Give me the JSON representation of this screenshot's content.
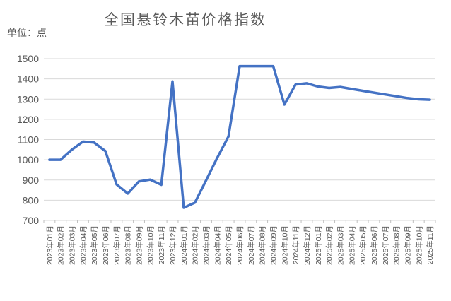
{
  "title": "全国悬铃木苗价格指数",
  "unit_label": "单位：点",
  "colors": {
    "line": "#4472C4",
    "grid": "#D9D9D9",
    "axis": "#D9D9D9",
    "tick": "#BFBFBF",
    "text": "#595959",
    "border": "#A6A6A6",
    "background": "#FFFFFF"
  },
  "chart_data": {
    "type": "line",
    "title": "全国悬铃木苗价格指数",
    "unit": "单位：点",
    "legend": "none",
    "grid": "horizontal",
    "ylim": [
      700,
      1500
    ],
    "yticks": [
      700,
      800,
      900,
      1000,
      1100,
      1200,
      1300,
      1400,
      1500
    ],
    "categories": [
      "2023年01月",
      "2023年02月",
      "2023年03月",
      "2023年04月",
      "2023年05月",
      "2023年06月",
      "2023年07月",
      "2023年08月",
      "2023年09月",
      "2023年10月",
      "2023年11月",
      "2023年12月",
      "2024年01月",
      "2024年02月",
      "2024年03月",
      "2024年04月",
      "2024年05月",
      "2024年06月",
      "2024年07月",
      "2024年08月",
      "2024年09月",
      "2024年10月",
      "2024年11月",
      "2024年12月",
      "2025年01月",
      "2025年02月",
      "2025年03月",
      "2025年04月",
      "2025年05月",
      "2025年06月",
      "2025年07月",
      "2025年08月",
      "2025年09月",
      "2025年10月",
      "2025年11月"
    ],
    "values": [
      1000,
      1000,
      1050,
      1090,
      1085,
      1043,
      878,
      833,
      893,
      902,
      876,
      1387,
      763,
      788,
      898,
      1010,
      1115,
      1463,
      1463,
      1463,
      1463,
      1273,
      1372,
      1378,
      1362,
      1355,
      1360,
      1350,
      1341,
      1332,
      1323,
      1314,
      1305,
      1299,
      1297
    ]
  }
}
